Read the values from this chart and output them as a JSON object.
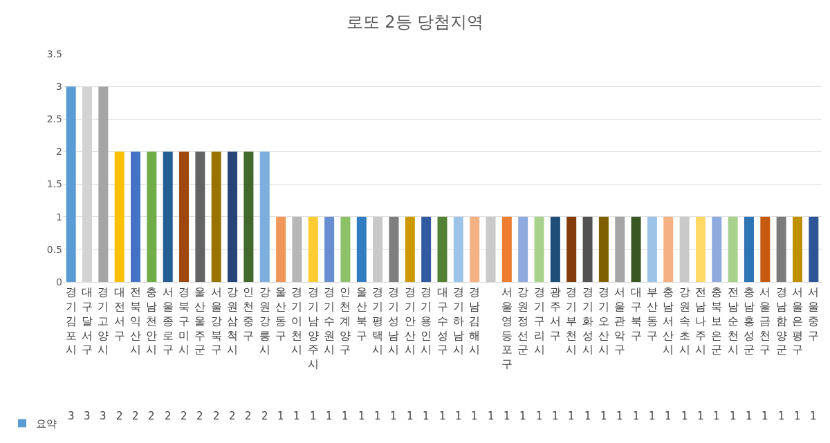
{
  "chart_data": {
    "type": "bar",
    "title": "로또 2등 당첨지역",
    "categories": [
      "경기김포시",
      "대구달서구",
      "경기고양시",
      "대전서구",
      "전북익산시",
      "충남천안시",
      "서울종로구",
      "경북구미시",
      "울산울주군",
      "서울강북구",
      "강원삼척시",
      "인천중구",
      "강원강릉시",
      "울산동구",
      "경기이천시",
      "경기남양주시",
      "경기수원시",
      "인천계양구",
      "울산북구",
      "경기평택시",
      "경기성남시",
      "경기안산시",
      "경기용인시",
      "대구수성구",
      "경기하남시",
      "경남김해시",
      null,
      "서울영등포구",
      "강원정선군",
      "경기구리시",
      "광주서구",
      "경기부천시",
      "경기화성시",
      "경기오산시",
      "서울관악구",
      "대구북구",
      "부산동구",
      "충남서산시",
      "강원속초시",
      "전남나주시",
      "충북보은군",
      "전남순천시",
      "충남홍성군",
      "서울금천구",
      "경남함양군",
      "서울은평구",
      "서울중구"
    ],
    "series": [
      {
        "name": "요약",
        "values": [
          3,
          3,
          3,
          2,
          2,
          2,
          2,
          2,
          2,
          2,
          2,
          2,
          2,
          1,
          1,
          1,
          1,
          1,
          1,
          1,
          1,
          1,
          1,
          1,
          1,
          1,
          1,
          1,
          1,
          1,
          1,
          1,
          1,
          1,
          1,
          1,
          1,
          1,
          1,
          1,
          1,
          1,
          1,
          1,
          1,
          1,
          1
        ],
        "colors": [
          "#5b9bd5",
          "#d3d3d3",
          "#a5a5a5",
          "#ffc000",
          "#4472c4",
          "#70ad47",
          "#255e91",
          "#9e480e",
          "#636363",
          "#997300",
          "#264478",
          "#43682b",
          "#7cafdd",
          "#f1975a",
          "#b7b7b7",
          "#ffcd33",
          "#698ed0",
          "#8cc168",
          "#327dc2",
          "#c9c9c9",
          "#7f7f7f",
          "#cc9a00",
          "#335aa1",
          "#548235",
          "#9dc3e6",
          "#f4b183",
          "#c9c9c9",
          "#ed7d31",
          "#8faadc",
          "#a9d18e",
          "#1f4e79",
          "#843c0c",
          "#525252",
          "#7f6000",
          "#a5a5a5",
          "#385723",
          "#9dc3e6",
          "#f4b183",
          "#c9c9c9",
          "#ffd966",
          "#8faadc",
          "#a9d18e",
          "#2e75b6",
          "#c55a11",
          "#7b7b7b",
          "#bf9000",
          "#2f5597"
        ]
      }
    ],
    "ylim": [
      0,
      3.5
    ],
    "yticks": [
      0,
      0.5,
      1,
      1.5,
      2,
      2.5,
      3,
      3.5
    ],
    "grid": "y",
    "legend": "bottom left",
    "data_labels": true
  }
}
